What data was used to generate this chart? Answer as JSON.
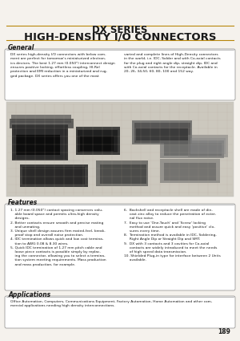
{
  "title_line1": "DX SERIES",
  "title_line2": "HIGH-DENSITY I/O CONNECTORS",
  "page_bg": "#f5f2ed",
  "section_general": "General",
  "gen_left": "DX series high-density I/O connectors with below com-\nment are perfect for tomorrow's miniaturized electron-\nics devices. The best 1.27 mm (0.050\") interconnect design\nensures positive locking, effortless coupling, HI-Rel\nprotection and EMI reduction in a miniaturized and rug-\nged package. DX series offers you one of the most",
  "gen_right": "varied and complete lines of High-Density connectors\nin the world, i.e. IDC, Solder and with Co-axial contacts\nfor the plug and right angle dip, straight dip, IDC and\nwith Co-axial contacts for the receptacle. Available in\n20, 26, 34,50, 60, 80, 100 and 152 way.",
  "section_features": "Features",
  "feat_left": "1. 1.27 mm (0.050\") contact spacing conserves valu-\n    able board space and permits ultra-high density\n    designs.\n2. Better contacts ensure smooth and precise mating\n    and unmating.\n3. Unique shell design assures firm mated-feel, break-\n    proof stop and overall noise protection.\n4. IDC termination allows quick and low cost termina-\n    tion to AWG 0.08 & 8.30 wires.\n5. Quick IDC termination of 1.27 mm pitch cable and\n    loose piece contacts is possible simply by replac-\n    ing the connector, allowing you to select a termina-\n    tion system meeting requirements. Mass production\n    and mass production, for example.",
  "feat_right": "6.  Backshell and receptacle shell are made of die-\n     cast zinc alloy to reduce the penetration of exter-\n     nal flux noise.\n7.  Easy to use 'One-Touch' and 'Screw' locking\n     method and assure quick and easy 'positive' clo-\n     sures every time.\n8.  Termination method is available in IDC, Soldering,\n     Right Angle Dip or Straight Dip and SMT.\n9.  DX with 3 contacts and 3 cavities for Co-axial\n     contacts are widely introduced to meet the needs\n     of high speed data transmission.\n10. Shielded Plug-in type for interface between 2 Units\n     available.",
  "section_applications": "Applications",
  "app_text": "Office Automation, Computers, Communications Equipment, Factory Automation, Home Automation and other com-\nmercial applications needing high density interconnections.",
  "page_number": "189",
  "title_color": "#1a1a1a",
  "gold_line_color": "#b8860b",
  "text_color": "#1a1a1a",
  "box_bg": "#ffffff",
  "box_edge": "#888888",
  "section_title_size": 5.5,
  "body_text_size": 3.2,
  "title1_size": 8.5,
  "title2_size": 9.5
}
